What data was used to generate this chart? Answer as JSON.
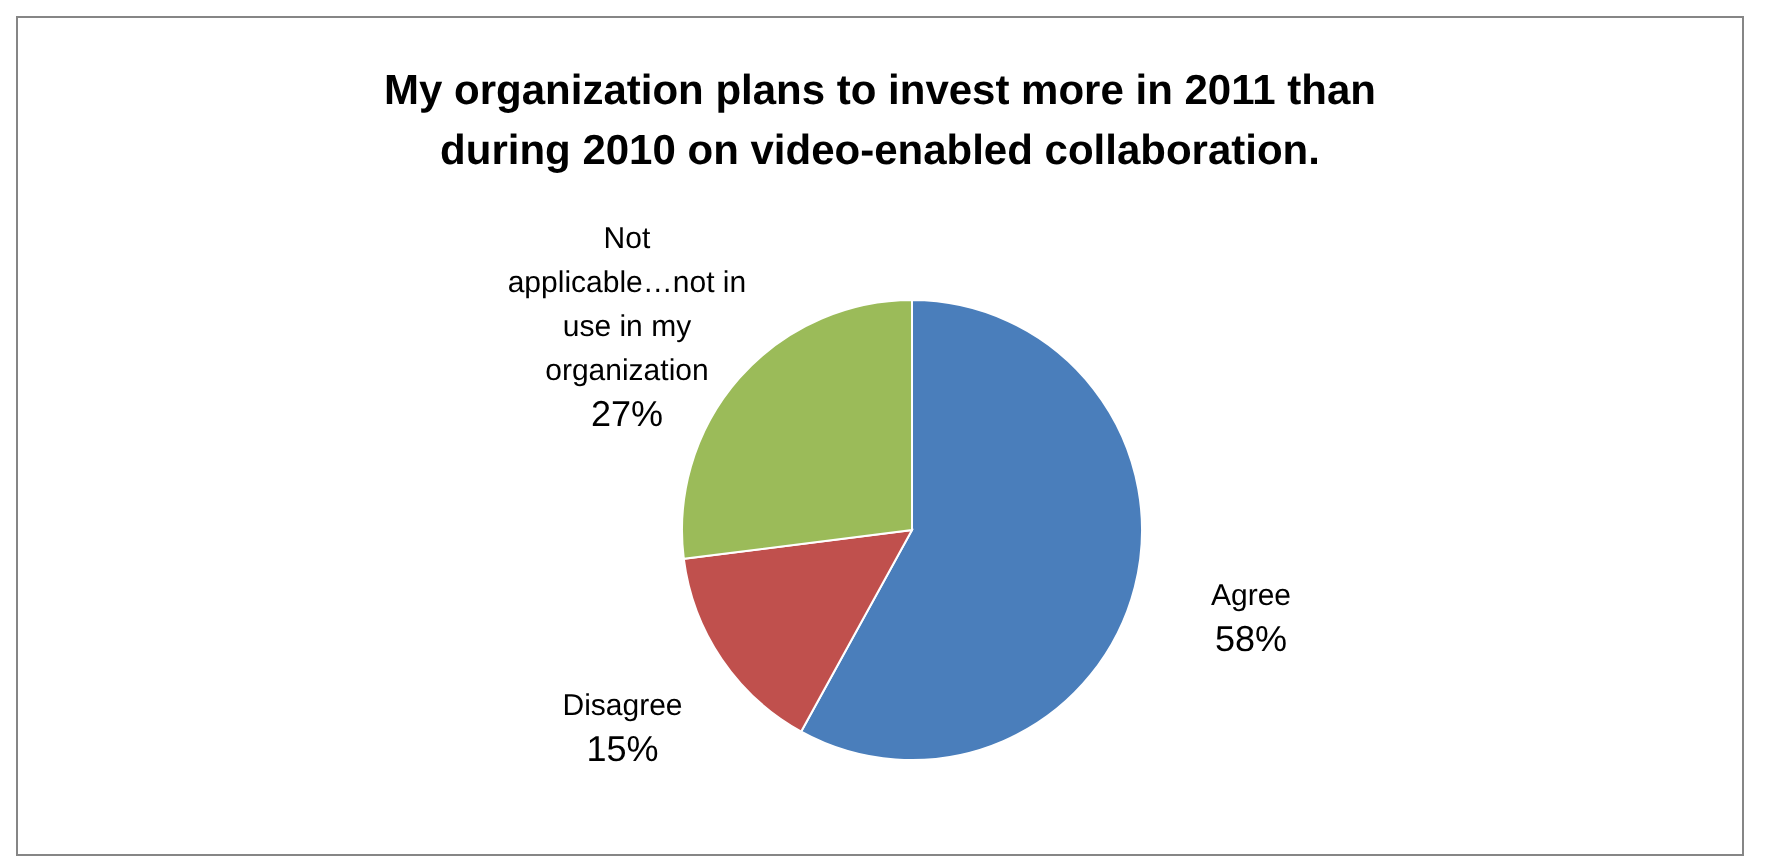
{
  "chart_data": {
    "type": "pie",
    "title": "My organization plans to invest more in 2011 than during 2010 on video-enabled collaboration.",
    "categories": [
      "Agree",
      "Disagree",
      "Not applicable…not in use in my organization"
    ],
    "values": [
      58,
      15,
      27
    ],
    "colors": [
      "#4a7ebb",
      "#c0504d",
      "#9bbb59"
    ],
    "value_labels": [
      "58%",
      "15%",
      "27%"
    ]
  }
}
